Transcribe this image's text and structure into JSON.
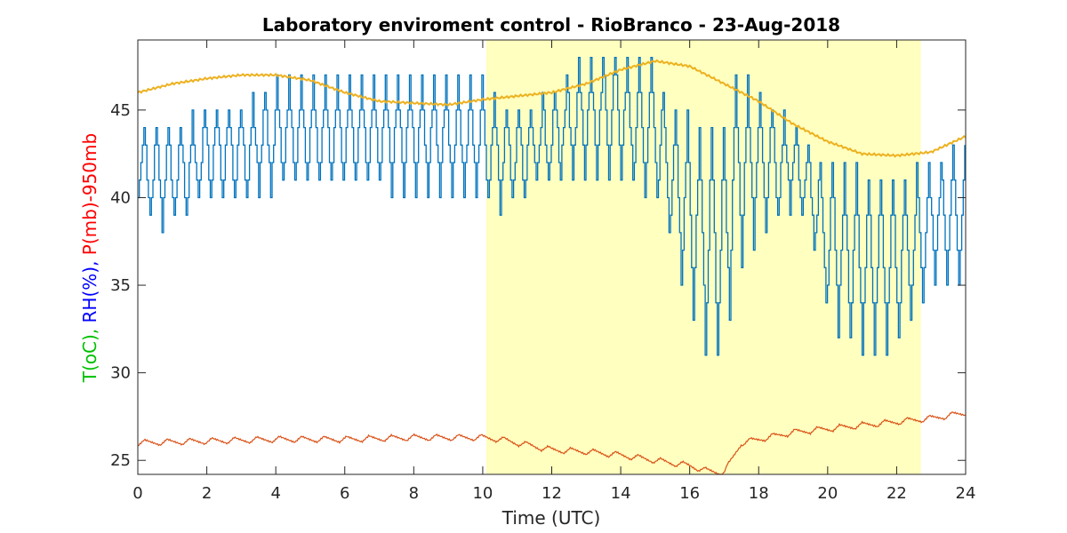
{
  "chart_data": {
    "type": "line",
    "title": "Laboratory enviroment control - RioBranco - 23-Aug-2018",
    "xlabel": "Time (UTC)",
    "ylabel_parts": [
      {
        "text": "T(oC), ",
        "color": "#00c000"
      },
      {
        "text": "RH(%), ",
        "color": "#0000ff"
      },
      {
        "text": "P(mb)-950mb",
        "color": "#ff0000"
      }
    ],
    "xlim": [
      0,
      24
    ],
    "ylim": [
      24.2,
      49
    ],
    "xticks": [
      0,
      2,
      4,
      6,
      8,
      10,
      12,
      14,
      16,
      18,
      20,
      22,
      24
    ],
    "yticks": [
      25,
      30,
      35,
      40,
      45
    ],
    "grid": false,
    "daylight_band": {
      "x_start": 10.1,
      "x_end": 22.7,
      "color": "#ffffbf"
    },
    "series": [
      {
        "color": "#0072bd",
        "oscillation_period_h": 0.35,
        "x": [
          0,
          0.5,
          1,
          2,
          3,
          4,
          5,
          6,
          7,
          8,
          9,
          10,
          10.3,
          11,
          12,
          13,
          14,
          15,
          15.5,
          16,
          16.5,
          17,
          17.3,
          18,
          19,
          19.5,
          20,
          21,
          22,
          23,
          24
        ],
        "high": [
          44,
          44,
          44,
          45,
          45.5,
          46.5,
          47,
          46.5,
          47,
          47,
          47,
          46.5,
          46,
          45,
          46,
          48,
          48.5,
          47.5,
          45,
          45,
          44,
          44,
          47.5,
          46,
          44,
          43,
          42,
          41.5,
          41,
          42,
          43
        ],
        "low": [
          40,
          38,
          38.5,
          40,
          40,
          40.5,
          40.5,
          40.5,
          40.5,
          40,
          40,
          40,
          39,
          40,
          41,
          41.5,
          41,
          40,
          37,
          33.5,
          31,
          31,
          35.5,
          38,
          39.5,
          38,
          33,
          31,
          31.5,
          35,
          35.5
        ]
      },
      {
        "color": "#edb120",
        "x": [
          0,
          1,
          2,
          3,
          4,
          5,
          6,
          7,
          8,
          9,
          10,
          11,
          12,
          13,
          14,
          15,
          16,
          17,
          18,
          19,
          20,
          21,
          22,
          23,
          24
        ],
        "y": [
          46,
          46.5,
          46.8,
          47,
          47,
          46.7,
          46,
          45.5,
          45.4,
          45.3,
          45.6,
          45.8,
          46,
          46.5,
          47.3,
          47.8,
          47.5,
          46.5,
          45.5,
          44.2,
          43.2,
          42.5,
          42.4,
          42.6,
          43.5
        ]
      },
      {
        "color": "#d95319",
        "oscillation_period_h": 0.65,
        "amplitude": 0.35,
        "x": [
          0,
          2,
          4,
          6,
          8,
          9,
          10,
          10.5,
          11,
          12,
          13,
          14,
          15,
          16,
          16.5,
          17,
          17.5,
          18,
          19,
          20,
          21,
          22,
          23,
          24
        ],
        "y": [
          26,
          26.1,
          26.2,
          26.2,
          26.3,
          26.3,
          26.3,
          26.2,
          26,
          25.6,
          25.5,
          25.3,
          25,
          24.7,
          24.4,
          24.3,
          26,
          26.2,
          26.6,
          26.8,
          27,
          27.2,
          27.4,
          27.7
        ]
      }
    ]
  }
}
